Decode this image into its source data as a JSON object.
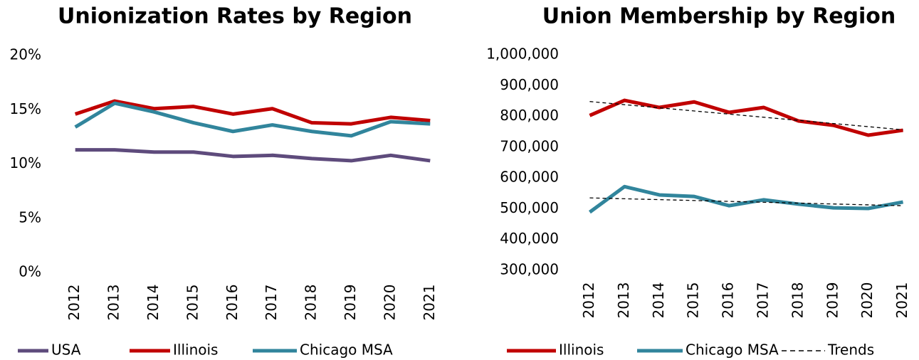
{
  "chart_data": [
    {
      "type": "line",
      "title": "Unionization Rates by Region",
      "categories": [
        "2012",
        "2013",
        "2014",
        "2015",
        "2016",
        "2017",
        "2018",
        "2019",
        "2020",
        "2021"
      ],
      "series": [
        {
          "name": "USA",
          "color": "#5e4b7c",
          "values": [
            11.3,
            11.3,
            11.1,
            11.1,
            10.7,
            10.8,
            10.5,
            10.3,
            10.8,
            10.3
          ]
        },
        {
          "name": "Illinois",
          "color": "#c00000",
          "values": [
            14.6,
            15.8,
            15.1,
            15.3,
            14.6,
            15.1,
            13.8,
            13.7,
            14.3,
            14.0
          ]
        },
        {
          "name": "Chicago MSA",
          "color": "#31859c",
          "values": [
            13.4,
            15.6,
            14.8,
            13.8,
            13.0,
            13.6,
            13.0,
            12.6,
            13.9,
            13.7
          ]
        }
      ],
      "ylim": [
        0,
        20
      ],
      "yticks": [
        {
          "value": 0,
          "label": "0%"
        },
        {
          "value": 5,
          "label": "5%"
        },
        {
          "value": 10,
          "label": "10%"
        },
        {
          "value": 15,
          "label": "15%"
        },
        {
          "value": 20,
          "label": "20%"
        }
      ],
      "grid": false,
      "legend": "bottom"
    },
    {
      "type": "line",
      "title": "Union Membership by Region",
      "categories": [
        "2012",
        "2013",
        "2014",
        "2015",
        "2016",
        "2017",
        "2018",
        "2019",
        "2020",
        "2021"
      ],
      "series": [
        {
          "name": "Illinois",
          "color": "#c00000",
          "values": [
            803000,
            852000,
            829000,
            847000,
            813000,
            829000,
            785000,
            771000,
            739000,
            755000
          ]
        },
        {
          "name": "Chicago MSA",
          "color": "#31859c",
          "values": [
            489000,
            572000,
            545000,
            540000,
            510000,
            529000,
            515000,
            503000,
            501000,
            522000
          ]
        }
      ],
      "trendline": {
        "name": "Trends",
        "color": "#000000",
        "style": "dashed"
      },
      "ylim": [
        300000,
        1000000
      ],
      "yticks": [
        {
          "value": 300000,
          "label": "300,000"
        },
        {
          "value": 400000,
          "label": "400,000"
        },
        {
          "value": 500000,
          "label": "500,000"
        },
        {
          "value": 600000,
          "label": "600,000"
        },
        {
          "value": 700000,
          "label": "700,000"
        },
        {
          "value": 800000,
          "label": "800,000"
        },
        {
          "value": 900000,
          "label": "900,000"
        },
        {
          "value": 1000000,
          "label": "1,000,000"
        }
      ],
      "grid": false,
      "legend": "bottom"
    }
  ]
}
